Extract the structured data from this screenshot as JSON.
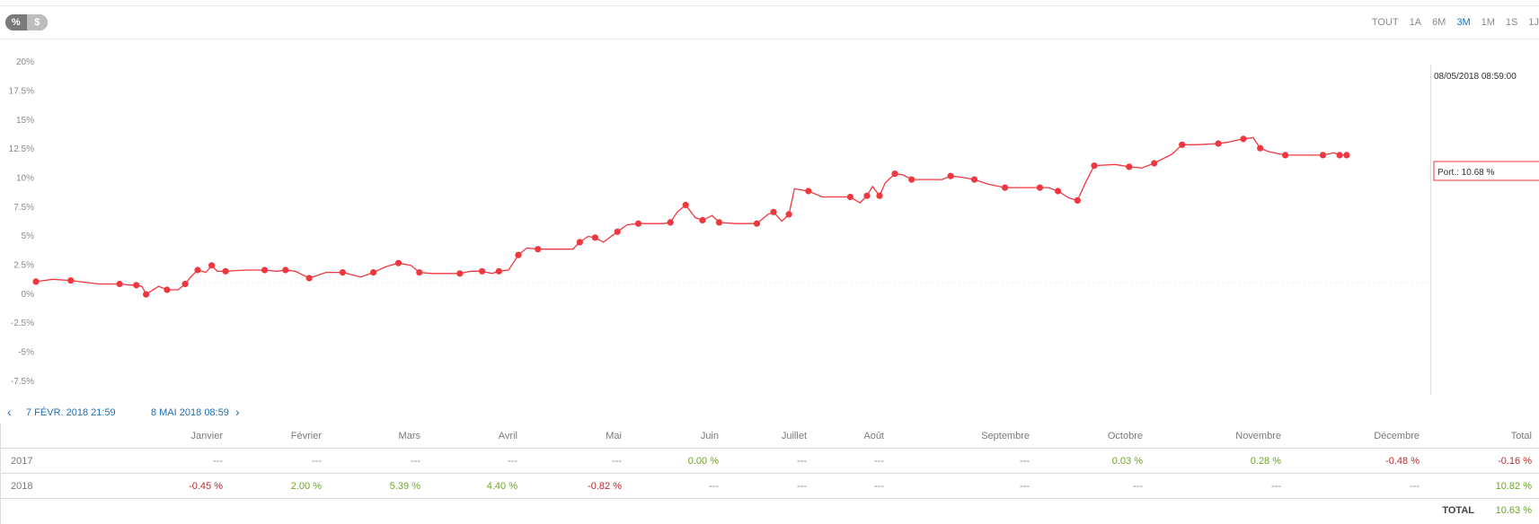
{
  "toggle": {
    "percent": "%",
    "dollar": "$"
  },
  "ranges": [
    "TOUT",
    "1A",
    "6M",
    "3M",
    "1M",
    "1S",
    "1J"
  ],
  "active_range": "3M",
  "tooltip": {
    "date": "08/05/2018 08:59:00",
    "label": "Port.: 10.68 %"
  },
  "nav": {
    "start": "7 FÉVR. 2018 21:59",
    "end": "8 MAI 2018 08:59"
  },
  "colors": {
    "line": "#f0373f",
    "positive": "#6ea623",
    "negative": "#c0272d",
    "link": "#1e6fb3"
  },
  "chart_data": {
    "type": "line",
    "title": "",
    "xlabel": "",
    "ylabel": "",
    "ylim": [
      -8.75,
      21.25
    ],
    "y_ticks": [
      "20%",
      "17.5%",
      "15%",
      "12.5%",
      "10%",
      "7.5%",
      "5%",
      "2.5%",
      "0%",
      "-2.5%",
      "-5%",
      "-7.5%"
    ],
    "y_tick_values": [
      20,
      17.5,
      15,
      12.5,
      10,
      7.5,
      5,
      2.5,
      0,
      -2.5,
      -5,
      -7.5
    ],
    "x_range": [
      0,
      100
    ],
    "series": [
      {
        "values": [
          [
            0,
            1.0
          ],
          [
            1.2,
            1.2
          ],
          [
            2.5,
            1.1
          ],
          [
            4.5,
            0.8
          ],
          [
            6,
            0.8
          ],
          [
            6.8,
            0.7
          ],
          [
            7.2,
            0.7
          ],
          [
            7.6,
            0.6
          ],
          [
            7.9,
            -0.1
          ],
          [
            8.8,
            0.6
          ],
          [
            9.4,
            0.3
          ],
          [
            10.2,
            0.3
          ],
          [
            10.7,
            0.8
          ],
          [
            11.1,
            1.4
          ],
          [
            11.6,
            2.0
          ],
          [
            12.2,
            1.8
          ],
          [
            12.6,
            2.4
          ],
          [
            13.0,
            1.9
          ],
          [
            13.6,
            1.9
          ],
          [
            15,
            2.0
          ],
          [
            16.4,
            2.0
          ],
          [
            17.3,
            1.9
          ],
          [
            17.9,
            2.0
          ],
          [
            18.6,
            1.9
          ],
          [
            19.6,
            1.3
          ],
          [
            20.8,
            1.8
          ],
          [
            22.0,
            1.8
          ],
          [
            23.3,
            1.4
          ],
          [
            24.2,
            1.8
          ],
          [
            25.1,
            2.3
          ],
          [
            26.0,
            2.6
          ],
          [
            26.9,
            2.4
          ],
          [
            27.5,
            1.8
          ],
          [
            28.4,
            1.7
          ],
          [
            30.4,
            1.7
          ],
          [
            31.2,
            1.9
          ],
          [
            32.0,
            1.9
          ],
          [
            32.7,
            1.7
          ],
          [
            33.2,
            1.9
          ],
          [
            33.9,
            2.0
          ],
          [
            34.6,
            3.3
          ],
          [
            35.2,
            3.9
          ],
          [
            36,
            3.8
          ],
          [
            38.5,
            3.8
          ],
          [
            39.0,
            4.4
          ],
          [
            39.6,
            4.9
          ],
          [
            40.1,
            4.8
          ],
          [
            40.7,
            4.4
          ],
          [
            41.7,
            5.3
          ],
          [
            42.4,
            5.9
          ],
          [
            43.2,
            6.0
          ],
          [
            45,
            6.0
          ],
          [
            45.5,
            6.1
          ],
          [
            46.0,
            7.0
          ],
          [
            46.6,
            7.6
          ],
          [
            47.3,
            6.5
          ],
          [
            47.8,
            6.3
          ],
          [
            48.5,
            6.7
          ],
          [
            49.0,
            6.1
          ],
          [
            50.2,
            6.0
          ],
          [
            51.7,
            6.0
          ],
          [
            52.5,
            6.8
          ],
          [
            52.9,
            7.0
          ],
          [
            53.5,
            6.2
          ],
          [
            54,
            6.8
          ],
          [
            54.4,
            9.0
          ],
          [
            55.4,
            8.8
          ],
          [
            56.4,
            8.3
          ],
          [
            58.4,
            8.3
          ],
          [
            59.1,
            7.8
          ],
          [
            59.6,
            8.4
          ],
          [
            60,
            9.2
          ],
          [
            60.5,
            8.4
          ],
          [
            60.9,
            9.5
          ],
          [
            61.6,
            10.3
          ],
          [
            62.2,
            10.2
          ],
          [
            62.8,
            9.8
          ],
          [
            65,
            9.8
          ],
          [
            65.6,
            10.1
          ],
          [
            66.4,
            10.0
          ],
          [
            67.3,
            9.8
          ],
          [
            68.3,
            9.4
          ],
          [
            69.5,
            9.1
          ],
          [
            71,
            9.1
          ],
          [
            72.0,
            9.1
          ],
          [
            72.6,
            9.1
          ],
          [
            73.3,
            8.8
          ],
          [
            74.1,
            8.2
          ],
          [
            74.7,
            8.0
          ],
          [
            75.3,
            9.6
          ],
          [
            75.9,
            11.0
          ],
          [
            77.4,
            11.1
          ],
          [
            78.4,
            10.9
          ],
          [
            79.3,
            10.8
          ],
          [
            80.2,
            11.2
          ],
          [
            81.5,
            12.0
          ],
          [
            82.2,
            12.8
          ],
          [
            83.2,
            12.8
          ],
          [
            84.8,
            12.9
          ],
          [
            85.4,
            13.0
          ],
          [
            86.6,
            13.3
          ],
          [
            87.3,
            13.4
          ],
          [
            87.8,
            12.5
          ],
          [
            88.4,
            12.2
          ],
          [
            89.6,
            11.9
          ],
          [
            91,
            11.9
          ],
          [
            92.3,
            11.9
          ],
          [
            93.1,
            12.1
          ],
          [
            93.5,
            11.9
          ],
          [
            94.0,
            11.9
          ]
        ]
      }
    ]
  },
  "table": {
    "headers": [
      "",
      "Janvier",
      "Février",
      "Mars",
      "Avril",
      "Mai",
      "Juin",
      "Juillet",
      "Août",
      "Septembre",
      "Octobre",
      "Novembre",
      "Décembre",
      "Total"
    ],
    "rows": [
      {
        "year": "2017",
        "cells": [
          "---",
          "---",
          "---",
          "---",
          "---",
          "0.00 %",
          "---",
          "---",
          "---",
          "0.03 %",
          "0.28 %",
          "-0.48 %",
          "-0.16 %"
        ]
      },
      {
        "year": "2018",
        "cells": [
          "-0.45 %",
          "2.00 %",
          "5.39 %",
          "4.40 %",
          "-0.82 %",
          "---",
          "---",
          "---",
          "---",
          "---",
          "---",
          "---",
          "10.82 %"
        ]
      }
    ]
  },
  "total": {
    "label": "TOTAL",
    "value": "10.63 %"
  }
}
